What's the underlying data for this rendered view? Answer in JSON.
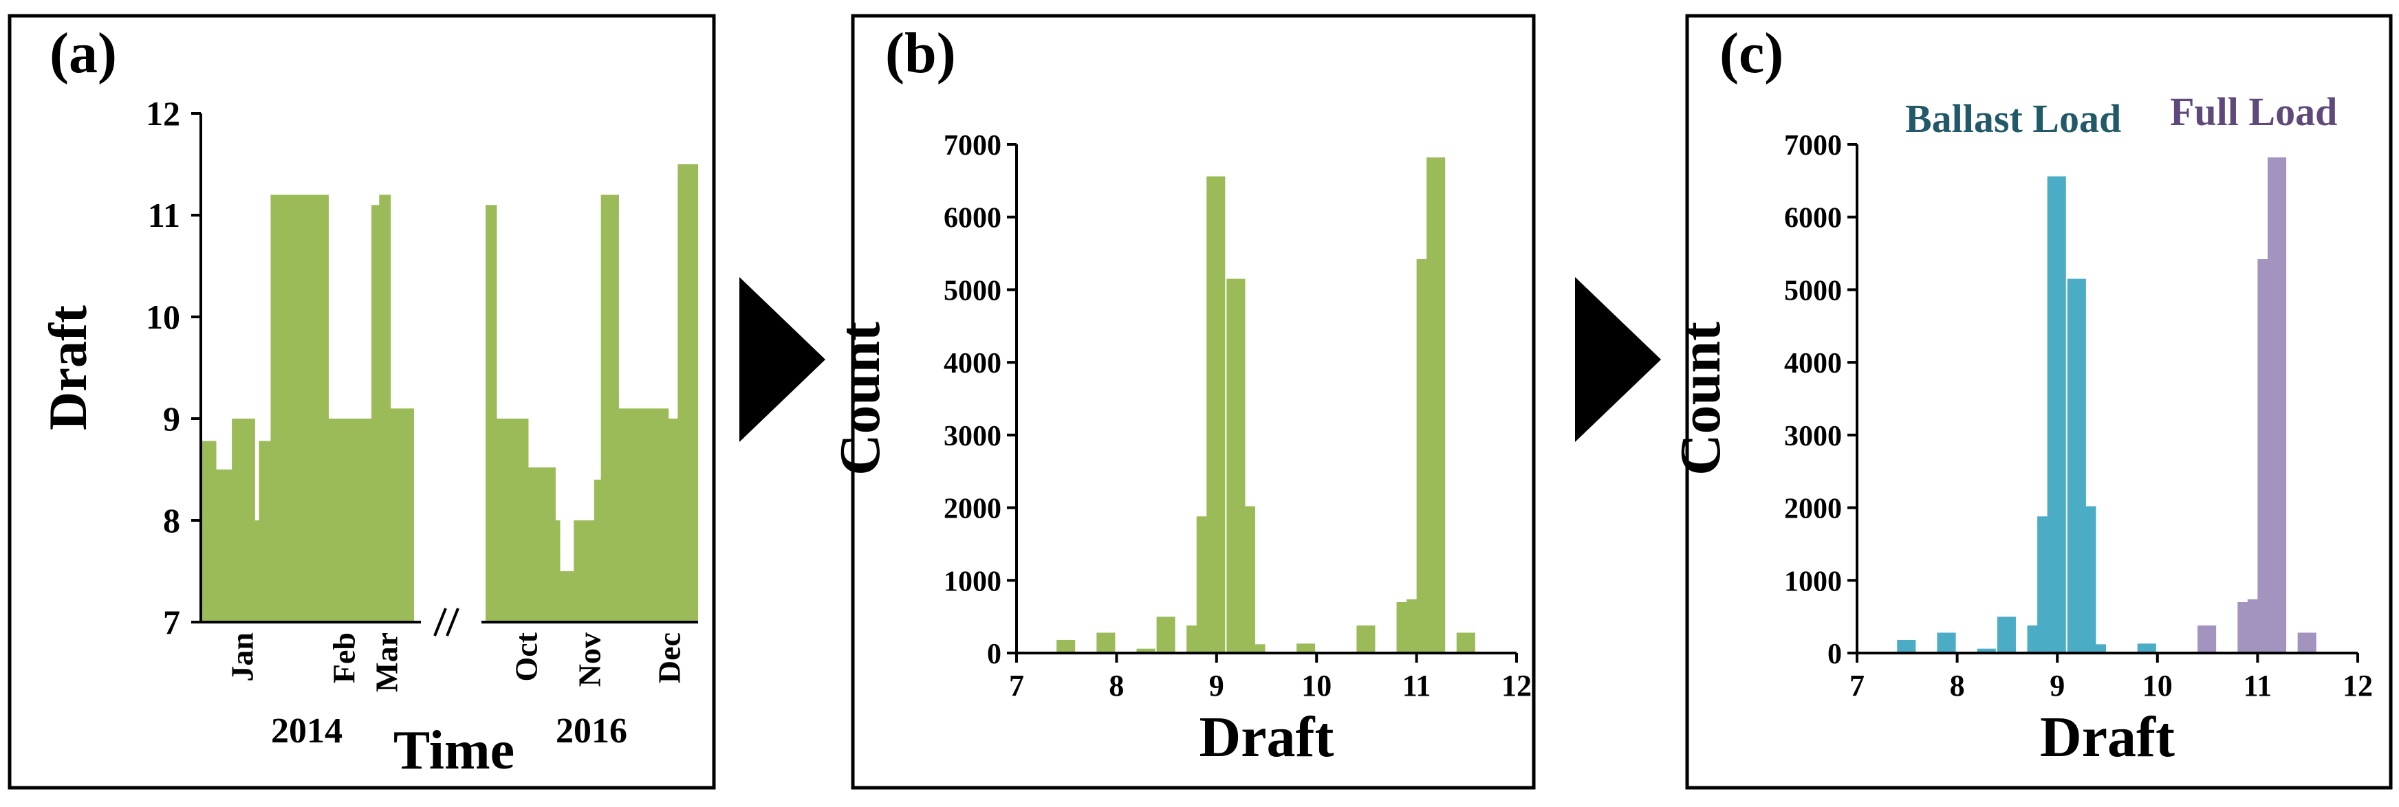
{
  "panels": {
    "a": {
      "label": "(a)"
    },
    "b": {
      "label": "(b)"
    },
    "c": {
      "label": "(c)"
    }
  },
  "chart_data": [
    {
      "id": "a",
      "type": "area",
      "xlabel": "Time",
      "ylabel": "Draft",
      "ylim": [
        7,
        12
      ],
      "y_ticks": [
        7,
        8,
        9,
        10,
        11,
        12
      ],
      "axis_break": true,
      "segments": [
        {
          "year": "2014",
          "months": [
            "Jan",
            "Feb",
            "Mar"
          ],
          "steps": [
            [
              0.0,
              8.78
            ],
            [
              0.08,
              8.5
            ],
            [
              0.16,
              9.0
            ],
            [
              0.28,
              8.0
            ],
            [
              0.3,
              8.78
            ],
            [
              0.36,
              11.2
            ],
            [
              0.66,
              9.0
            ],
            [
              0.88,
              11.1
            ],
            [
              0.92,
              11.2
            ],
            [
              0.98,
              9.1
            ],
            [
              1.1,
              9.1
            ]
          ]
        },
        {
          "year": "2016",
          "months": [
            "Oct",
            "Nov",
            "Dec"
          ],
          "steps": [
            [
              0.0,
              11.1
            ],
            [
              0.05,
              9.0
            ],
            [
              0.19,
              8.52
            ],
            [
              0.31,
              8.0
            ],
            [
              0.33,
              7.5
            ],
            [
              0.39,
              8.0
            ],
            [
              0.48,
              8.4
            ],
            [
              0.51,
              11.2
            ],
            [
              0.59,
              9.1
            ],
            [
              0.81,
              9.0
            ],
            [
              0.85,
              11.5
            ],
            [
              0.94,
              11.5
            ]
          ]
        }
      ],
      "color": "#9bbb59"
    },
    {
      "id": "b",
      "type": "bar",
      "xlabel": "Draft",
      "ylabel": "Count",
      "xlim": [
        7,
        12
      ],
      "ylim": [
        0,
        7000
      ],
      "x_ticks": [
        7,
        8,
        9,
        10,
        11,
        12
      ],
      "y_ticks": [
        0,
        1000,
        2000,
        3000,
        4000,
        5000,
        6000,
        7000
      ],
      "bin_width": 0.2,
      "bins": [
        {
          "x": 7.4,
          "count": 180
        },
        {
          "x": 7.8,
          "count": 280
        },
        {
          "x": 8.2,
          "count": 60
        },
        {
          "x": 8.4,
          "count": 500
        },
        {
          "x": 8.7,
          "count": 380
        },
        {
          "x": 8.8,
          "count": 1880
        },
        {
          "x": 8.9,
          "count": 6560
        },
        {
          "x": 9.1,
          "count": 5150
        },
        {
          "x": 9.2,
          "count": 2020
        },
        {
          "x": 9.3,
          "count": 120
        },
        {
          "x": 9.8,
          "count": 130
        },
        {
          "x": 10.4,
          "count": 380
        },
        {
          "x": 10.8,
          "count": 700
        },
        {
          "x": 10.9,
          "count": 740
        },
        {
          "x": 11.0,
          "count": 5420
        },
        {
          "x": 11.1,
          "count": 6820
        },
        {
          "x": 11.4,
          "count": 280
        }
      ],
      "color": "#9bbb59"
    },
    {
      "id": "c",
      "type": "bar",
      "xlabel": "Draft",
      "ylabel": "Count",
      "xlim": [
        7,
        12
      ],
      "ylim": [
        0,
        7000
      ],
      "x_ticks": [
        7,
        8,
        9,
        10,
        11,
        12
      ],
      "y_ticks": [
        0,
        1000,
        2000,
        3000,
        4000,
        5000,
        6000,
        7000
      ],
      "bin_width": 0.2,
      "threshold": 10.2,
      "series": [
        {
          "name": "Ballast Load",
          "color": "#4bacc6"
        },
        {
          "name": "Full Load",
          "color": "#a393bf"
        }
      ],
      "bins": [
        {
          "x": 7.4,
          "count": 180
        },
        {
          "x": 7.8,
          "count": 280
        },
        {
          "x": 8.2,
          "count": 60
        },
        {
          "x": 8.4,
          "count": 500
        },
        {
          "x": 8.7,
          "count": 380
        },
        {
          "x": 8.8,
          "count": 1880
        },
        {
          "x": 8.9,
          "count": 6560
        },
        {
          "x": 9.1,
          "count": 5150
        },
        {
          "x": 9.2,
          "count": 2020
        },
        {
          "x": 9.3,
          "count": 120
        },
        {
          "x": 9.8,
          "count": 130
        },
        {
          "x": 10.4,
          "count": 380
        },
        {
          "x": 10.8,
          "count": 700
        },
        {
          "x": 10.9,
          "count": 740
        },
        {
          "x": 11.0,
          "count": 5420
        },
        {
          "x": 11.1,
          "count": 6820
        },
        {
          "x": 11.4,
          "count": 280
        }
      ]
    }
  ]
}
